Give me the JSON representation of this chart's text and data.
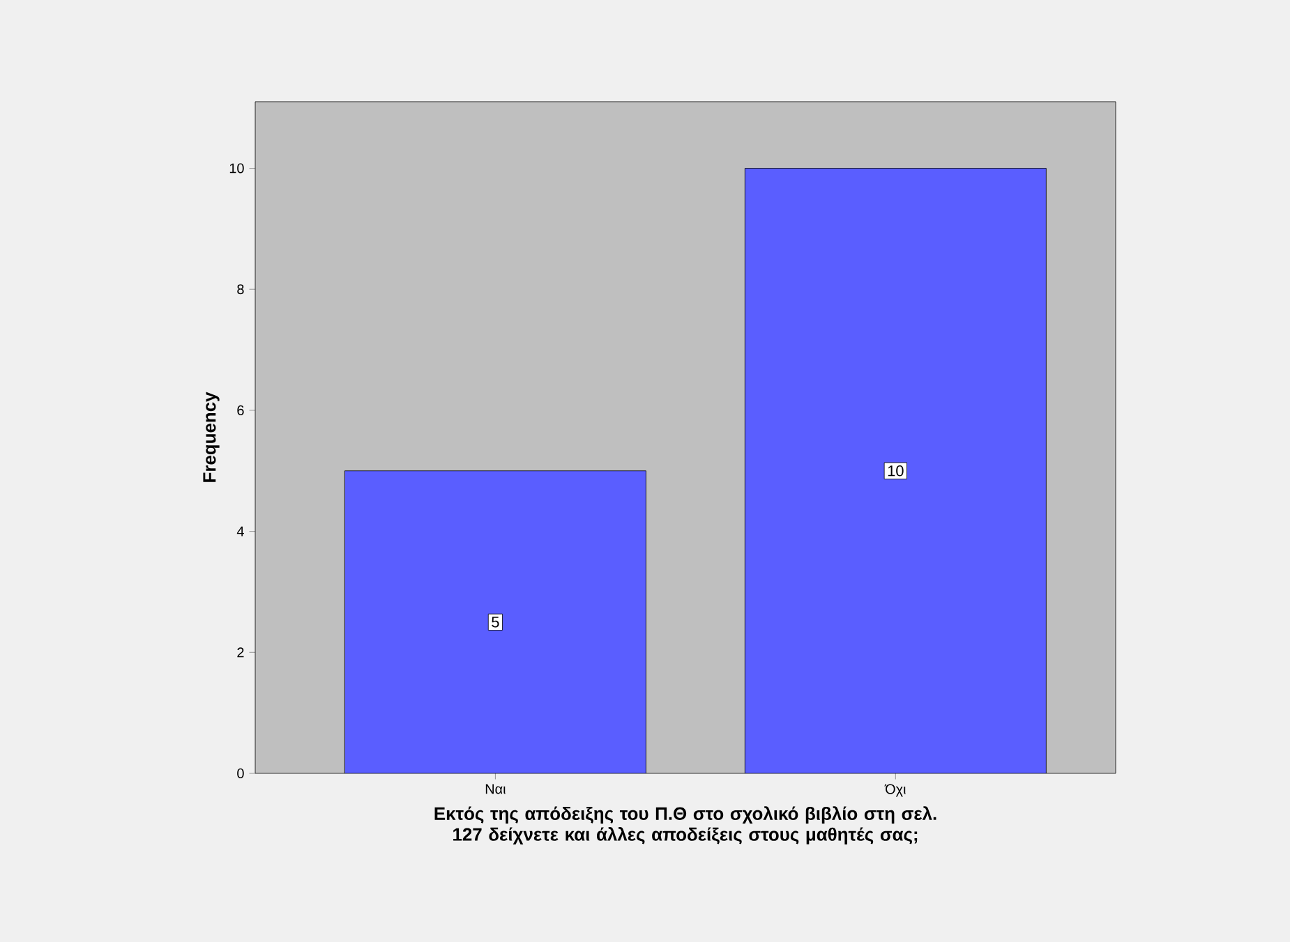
{
  "chart_data": {
    "type": "bar",
    "xlabel": "Εκτός της απόδειξης του Π.Θ στο σχολικό βιβλίο στη σελ. 127 δείχνετε και άλλες αποδείξεις στους μαθητές σας;",
    "ylabel": "Frequency",
    "categories": [
      "Ναι",
      "Όχι"
    ],
    "values": [
      5,
      10
    ],
    "color": "#5a5eff",
    "data_labels": true,
    "ylim": [
      0,
      11.1
    ],
    "yticks": [
      0,
      2,
      4,
      6,
      8,
      10
    ],
    "grid": false
  }
}
